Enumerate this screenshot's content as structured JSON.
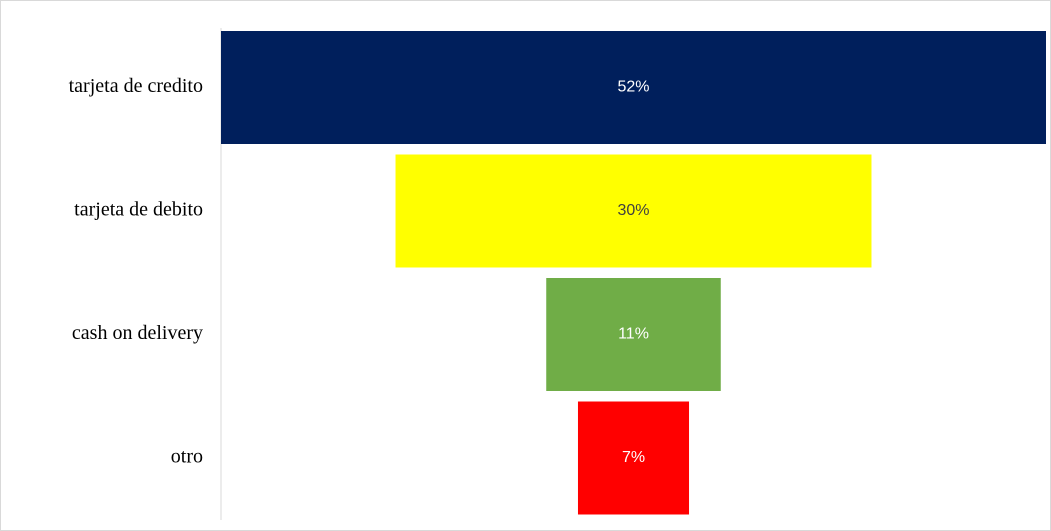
{
  "chart_data": {
    "type": "funnel",
    "categories": [
      "tarjeta de credito",
      "tarjeta de debito",
      "cash on delivery",
      "otro"
    ],
    "values": [
      52,
      30,
      11,
      7
    ],
    "value_labels": [
      "52%",
      "30%",
      "11%",
      "7%"
    ],
    "colors": [
      "#001f5c",
      "#ffff00",
      "#70ad47",
      "#ff0000"
    ]
  }
}
